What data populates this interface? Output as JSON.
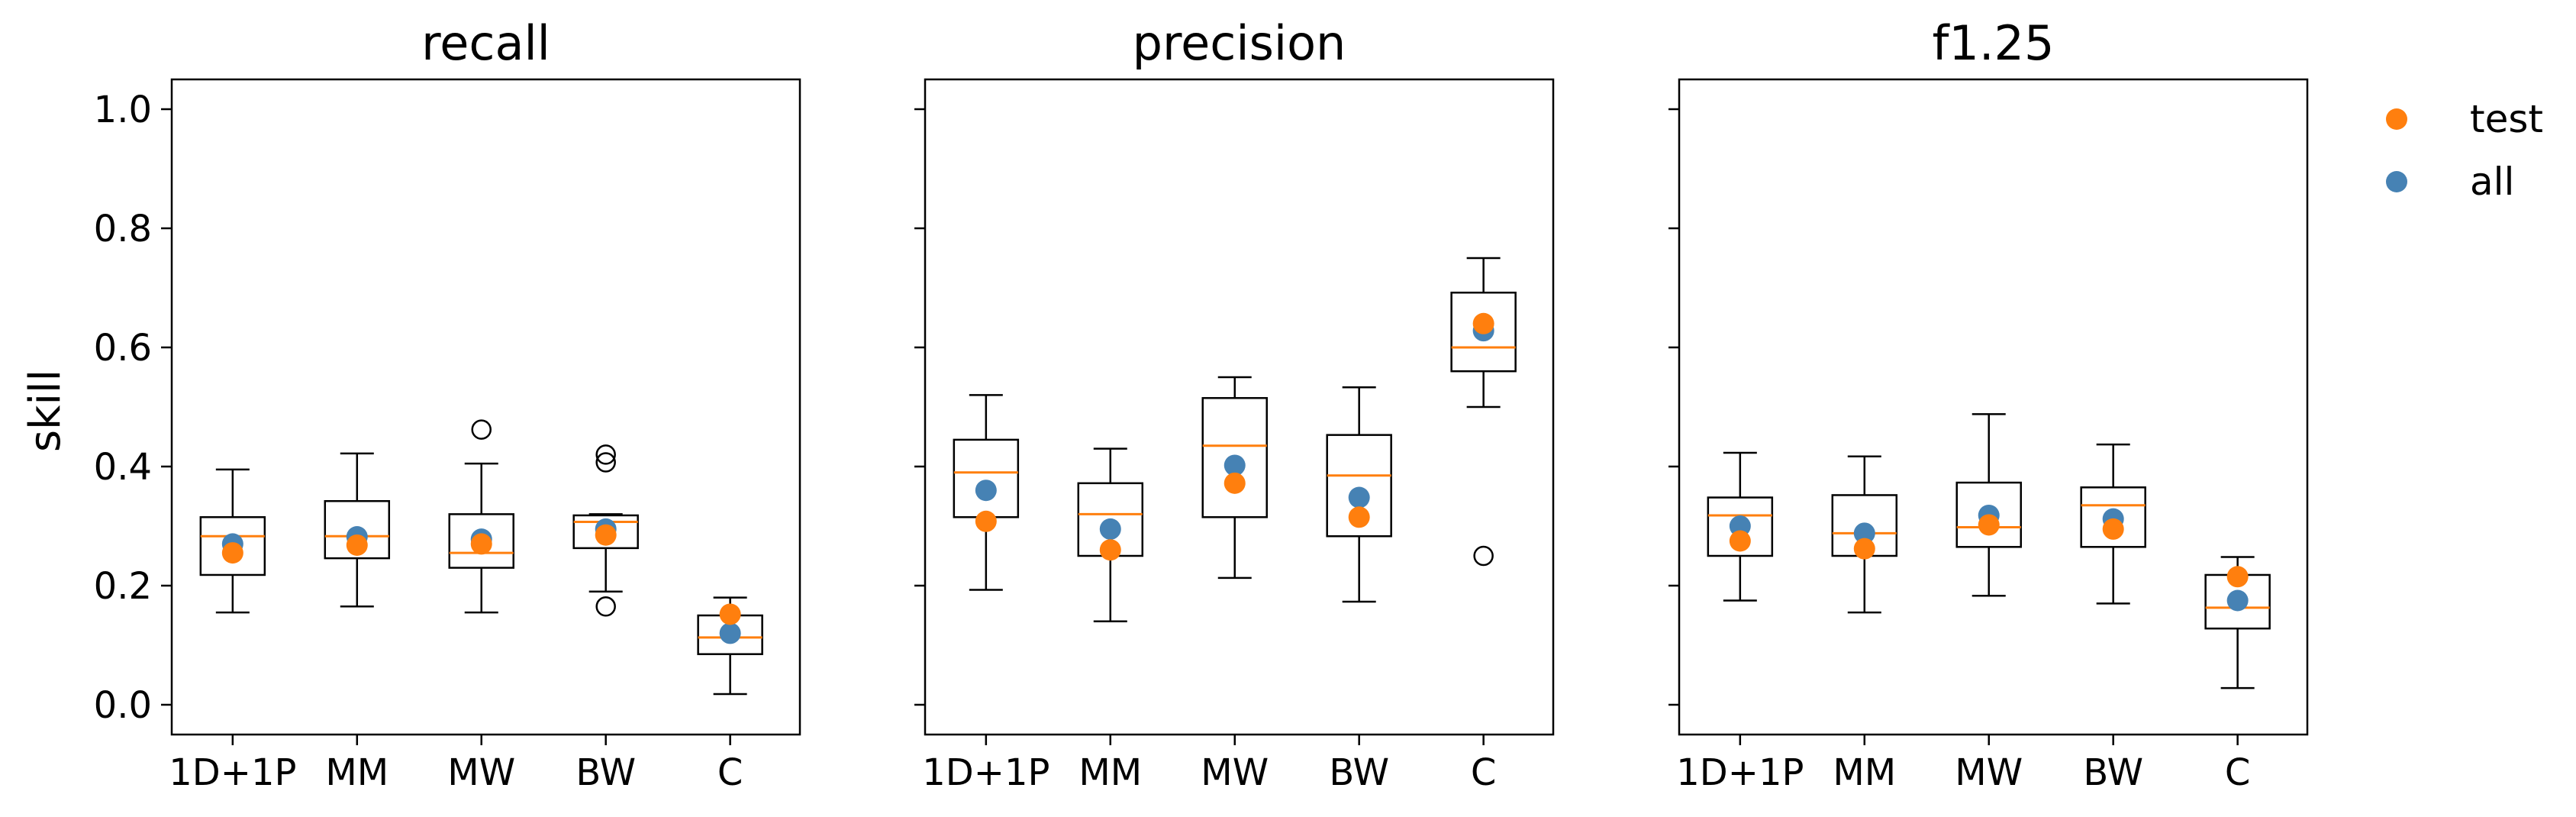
{
  "chart_data": {
    "type": "boxplot",
    "ylabel": "skill",
    "ylim": [
      -0.05,
      1.05
    ],
    "yticks": [
      0.0,
      0.2,
      0.4,
      0.6,
      0.8,
      1.0
    ],
    "ytick_labels": [
      "0.0",
      "0.2",
      "0.4",
      "0.6",
      "0.8",
      "1.0"
    ],
    "categories": [
      "1D+1P",
      "MM",
      "MW",
      "BW",
      "C"
    ],
    "legend": {
      "placement": "top-right outside",
      "entries": [
        {
          "label": "test",
          "color": "#ff7f0e"
        },
        {
          "label": "all",
          "color": "#4682b4"
        }
      ]
    },
    "colors": {
      "median": "#ff7f0e",
      "test": "#ff7f0e",
      "all": "#4682b4",
      "box": "#000000"
    },
    "panels": [
      {
        "title": "recall",
        "boxes": [
          {
            "category": "1D+1P",
            "whisker_low": 0.155,
            "q1": 0.218,
            "median": 0.283,
            "q3": 0.315,
            "whisker_high": 0.395,
            "outliers": [],
            "test": 0.255,
            "all": 0.27
          },
          {
            "category": "MM",
            "whisker_low": 0.165,
            "q1": 0.246,
            "median": 0.283,
            "q3": 0.342,
            "whisker_high": 0.422,
            "outliers": [],
            "test": 0.268,
            "all": 0.282
          },
          {
            "category": "MW",
            "whisker_low": 0.155,
            "q1": 0.23,
            "median": 0.255,
            "q3": 0.32,
            "whisker_high": 0.405,
            "outliers": [
              0.462
            ],
            "test": 0.27,
            "all": 0.278
          },
          {
            "category": "BW",
            "whisker_low": 0.19,
            "q1": 0.263,
            "median": 0.307,
            "q3": 0.318,
            "whisker_high": 0.32,
            "outliers": [
              0.42,
              0.407,
              0.165
            ],
            "test": 0.285,
            "all": 0.295
          },
          {
            "category": "C",
            "whisker_low": 0.018,
            "q1": 0.085,
            "median": 0.113,
            "q3": 0.15,
            "whisker_high": 0.18,
            "outliers": [],
            "test": 0.152,
            "all": 0.12
          }
        ]
      },
      {
        "title": "precision",
        "boxes": [
          {
            "category": "1D+1P",
            "whisker_low": 0.193,
            "q1": 0.315,
            "median": 0.39,
            "q3": 0.445,
            "whisker_high": 0.52,
            "outliers": [],
            "test": 0.308,
            "all": 0.36
          },
          {
            "category": "MM",
            "whisker_low": 0.14,
            "q1": 0.25,
            "median": 0.32,
            "q3": 0.372,
            "whisker_high": 0.43,
            "outliers": [],
            "test": 0.26,
            "all": 0.295
          },
          {
            "category": "MW",
            "whisker_low": 0.213,
            "q1": 0.315,
            "median": 0.435,
            "q3": 0.515,
            "whisker_high": 0.55,
            "outliers": [],
            "test": 0.372,
            "all": 0.402
          },
          {
            "category": "BW",
            "whisker_low": 0.173,
            "q1": 0.283,
            "median": 0.385,
            "q3": 0.453,
            "whisker_high": 0.533,
            "outliers": [],
            "test": 0.315,
            "all": 0.348
          },
          {
            "category": "C",
            "whisker_low": 0.5,
            "q1": 0.56,
            "median": 0.6,
            "q3": 0.692,
            "whisker_high": 0.75,
            "outliers": [
              0.25
            ],
            "test": 0.64,
            "all": 0.628
          }
        ]
      },
      {
        "title": "f1.25",
        "boxes": [
          {
            "category": "1D+1P",
            "whisker_low": 0.175,
            "q1": 0.25,
            "median": 0.318,
            "q3": 0.348,
            "whisker_high": 0.423,
            "outliers": [],
            "test": 0.275,
            "all": 0.3
          },
          {
            "category": "MM",
            "whisker_low": 0.155,
            "q1": 0.25,
            "median": 0.288,
            "q3": 0.352,
            "whisker_high": 0.417,
            "outliers": [],
            "test": 0.262,
            "all": 0.288
          },
          {
            "category": "MW",
            "whisker_low": 0.183,
            "q1": 0.265,
            "median": 0.298,
            "q3": 0.373,
            "whisker_high": 0.488,
            "outliers": [],
            "test": 0.302,
            "all": 0.318
          },
          {
            "category": "BW",
            "whisker_low": 0.17,
            "q1": 0.265,
            "median": 0.335,
            "q3": 0.365,
            "whisker_high": 0.437,
            "outliers": [],
            "test": 0.295,
            "all": 0.312
          },
          {
            "category": "C",
            "whisker_low": 0.028,
            "q1": 0.128,
            "median": 0.163,
            "q3": 0.218,
            "whisker_high": 0.248,
            "outliers": [],
            "test": 0.215,
            "all": 0.175
          }
        ]
      }
    ]
  }
}
